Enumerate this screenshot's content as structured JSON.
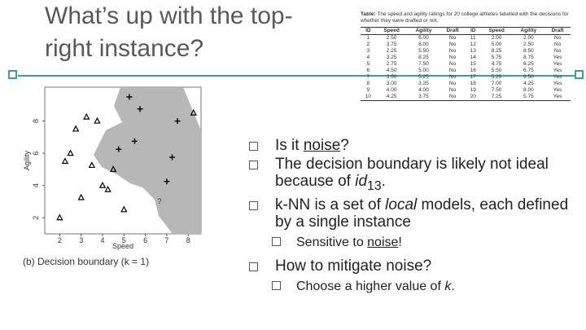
{
  "title": "What’s up with the top-right instance?",
  "table": {
    "caption_label": "Table:",
    "caption": "The speed and agility ratings for 20 college athletes labelled with the decisions for whether they were drafted or not.",
    "columns": [
      "ID",
      "Speed",
      "Agility",
      "Draft"
    ],
    "rows": [
      [
        "1",
        "2.50",
        "6.00",
        "No"
      ],
      [
        "2",
        "3.75",
        "8.00",
        "No"
      ],
      [
        "3",
        "2.25",
        "5.50",
        "No"
      ],
      [
        "4",
        "3.25",
        "8.25",
        "No"
      ],
      [
        "5",
        "2.75",
        "7.50",
        "No"
      ],
      [
        "6",
        "4.50",
        "5.00",
        "No"
      ],
      [
        "7",
        "3.50",
        "5.25",
        "No"
      ],
      [
        "8",
        "3.00",
        "3.25",
        "No"
      ],
      [
        "9",
        "4.00",
        "4.00",
        "No"
      ],
      [
        "10",
        "4.25",
        "3.75",
        "No"
      ],
      [
        "11",
        "2.00",
        "2.00",
        "No"
      ],
      [
        "12",
        "5.00",
        "2.50",
        "No"
      ],
      [
        "13",
        "8.25",
        "8.50",
        "No"
      ],
      [
        "14",
        "5.75",
        "8.75",
        "Yes"
      ],
      [
        "15",
        "4.75",
        "6.25",
        "Yes"
      ],
      [
        "16",
        "5.50",
        "6.75",
        "Yes"
      ],
      [
        "17",
        "5.25",
        "9.50",
        "Yes"
      ],
      [
        "18",
        "7.00",
        "4.25",
        "Yes"
      ],
      [
        "19",
        "7.50",
        "8.00",
        "Yes"
      ],
      [
        "20",
        "7.25",
        "5.75",
        "Yes"
      ]
    ]
  },
  "plot": {
    "x_label": "Speed",
    "y_label": "Agility",
    "query_label": "?",
    "caption": "(b) Decision boundary (k = 1)",
    "xlim": [
      1.3,
      8.6
    ],
    "ylim": [
      1,
      10.1
    ],
    "xticks": [
      2,
      3,
      4,
      5,
      6,
      7,
      8
    ],
    "yticks": [
      2,
      4,
      6,
      8
    ]
  },
  "bullets": [
    {
      "level": 1,
      "parts": [
        {
          "text": "Is it "
        },
        {
          "text": "noise",
          "style": "u"
        },
        {
          "text": "?"
        }
      ]
    },
    {
      "level": 1,
      "parts": [
        {
          "text": "The decision boundary is likely not ideal because of "
        },
        {
          "text": "id",
          "style": "i"
        },
        {
          "text": "13",
          "style": "sub"
        },
        {
          "text": "."
        }
      ]
    },
    {
      "level": 1,
      "parts": [
        {
          "text": "k-NN is a set of "
        },
        {
          "text": "local",
          "style": "i"
        },
        {
          "text": " models, each defined by a single instance"
        }
      ]
    },
    {
      "level": 2,
      "parts": [
        {
          "text": "Sensitive to "
        },
        {
          "text": "noise",
          "style": "u"
        },
        {
          "text": "!"
        }
      ]
    },
    {
      "level": 1,
      "parts": [
        {
          "text": "How to mitigate noise?"
        }
      ]
    },
    {
      "level": 2,
      "parts": [
        {
          "text": "Choose a higher value of "
        },
        {
          "text": "k",
          "style": "i"
        },
        {
          "text": "."
        }
      ]
    }
  ]
}
